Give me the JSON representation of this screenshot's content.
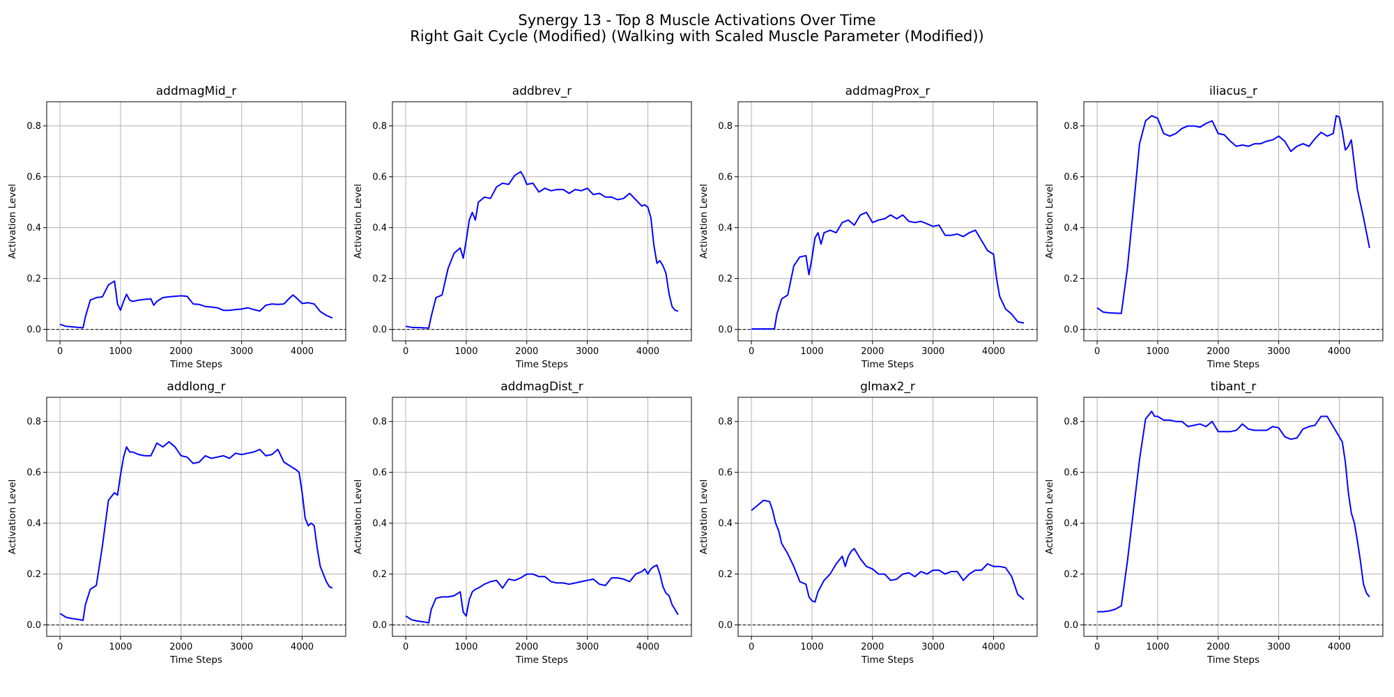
{
  "figure": {
    "title_line1": "Synergy 13 - Top 8 Muscle Activations Over Time",
    "title_line2": "Right Gait Cycle (Modified) (Walking with Scaled Muscle Parameter (Modified))"
  },
  "colors": {
    "line": "#0000ff",
    "grid": "#b0b0b0",
    "zero_line": "#000000"
  },
  "chart_data": [
    {
      "type": "line",
      "title": "addmagMid_r",
      "xlabel": "Time Steps",
      "ylabel": "Activation Level",
      "xlim": [
        -220,
        4720
      ],
      "ylim": [
        -0.045,
        0.895
      ],
      "xticks": [
        0,
        1000,
        2000,
        3000,
        4000
      ],
      "yticks": [
        0.0,
        0.2,
        0.4,
        0.6,
        0.8
      ],
      "grid": true,
      "zero_line": true,
      "x": [
        0,
        100,
        200,
        300,
        380,
        420,
        500,
        600,
        700,
        800,
        900,
        950,
        1000,
        1050,
        1100,
        1150,
        1200,
        1300,
        1400,
        1500,
        1550,
        1600,
        1700,
        1800,
        1900,
        2000,
        2100,
        2200,
        2300,
        2400,
        2500,
        2600,
        2700,
        2800,
        2900,
        3000,
        3100,
        3200,
        3300,
        3400,
        3500,
        3600,
        3700,
        3800,
        3850,
        3900,
        4000,
        4100,
        4200,
        4300,
        4400,
        4500
      ],
      "y": [
        0.02,
        0.012,
        0.01,
        0.008,
        0.006,
        0.05,
        0.115,
        0.125,
        0.128,
        0.175,
        0.19,
        0.1,
        0.075,
        0.11,
        0.138,
        0.115,
        0.11,
        0.115,
        0.118,
        0.12,
        0.095,
        0.11,
        0.125,
        0.128,
        0.13,
        0.132,
        0.13,
        0.1,
        0.098,
        0.09,
        0.088,
        0.085,
        0.075,
        0.075,
        0.078,
        0.08,
        0.085,
        0.078,
        0.072,
        0.095,
        0.1,
        0.098,
        0.1,
        0.125,
        0.135,
        0.125,
        0.102,
        0.105,
        0.1,
        0.07,
        0.055,
        0.045
      ]
    },
    {
      "type": "line",
      "title": "addbrev_r",
      "xlabel": "Time Steps",
      "ylabel": "Activation Level",
      "xlim": [
        -220,
        4720
      ],
      "ylim": [
        -0.045,
        0.895
      ],
      "xticks": [
        0,
        1000,
        2000,
        3000,
        4000
      ],
      "yticks": [
        0.0,
        0.2,
        0.4,
        0.6,
        0.8
      ],
      "grid": true,
      "zero_line": true,
      "x": [
        0,
        100,
        200,
        300,
        380,
        420,
        500,
        600,
        700,
        800,
        900,
        950,
        1000,
        1050,
        1100,
        1150,
        1200,
        1300,
        1400,
        1500,
        1600,
        1700,
        1800,
        1900,
        1950,
        2000,
        2100,
        2200,
        2300,
        2400,
        2500,
        2600,
        2700,
        2800,
        2900,
        3000,
        3100,
        3200,
        3300,
        3400,
        3500,
        3600,
        3700,
        3800,
        3900,
        3950,
        4000,
        4050,
        4100,
        4150,
        4200,
        4250,
        4300,
        4350,
        4400,
        4450,
        4500
      ],
      "y": [
        0.012,
        0.008,
        0.007,
        0.006,
        0.005,
        0.05,
        0.125,
        0.135,
        0.24,
        0.3,
        0.32,
        0.28,
        0.35,
        0.43,
        0.46,
        0.43,
        0.5,
        0.52,
        0.515,
        0.56,
        0.575,
        0.57,
        0.605,
        0.62,
        0.6,
        0.57,
        0.575,
        0.54,
        0.555,
        0.545,
        0.55,
        0.55,
        0.535,
        0.55,
        0.545,
        0.555,
        0.53,
        0.535,
        0.52,
        0.52,
        0.51,
        0.515,
        0.535,
        0.51,
        0.485,
        0.49,
        0.48,
        0.44,
        0.33,
        0.26,
        0.27,
        0.25,
        0.22,
        0.14,
        0.09,
        0.075,
        0.072
      ]
    },
    {
      "type": "line",
      "title": "addmagProx_r",
      "xlabel": "Time Steps",
      "ylabel": "Activation Level",
      "xlim": [
        -220,
        4720
      ],
      "ylim": [
        -0.045,
        0.895
      ],
      "xticks": [
        0,
        1000,
        2000,
        3000,
        4000
      ],
      "yticks": [
        0.0,
        0.2,
        0.4,
        0.6,
        0.8
      ],
      "grid": true,
      "zero_line": true,
      "x": [
        0,
        100,
        200,
        300,
        380,
        420,
        500,
        600,
        700,
        800,
        900,
        950,
        1000,
        1050,
        1100,
        1150,
        1200,
        1300,
        1400,
        1500,
        1600,
        1700,
        1800,
        1900,
        2000,
        2100,
        2200,
        2300,
        2400,
        2500,
        2600,
        2700,
        2800,
        2900,
        3000,
        3100,
        3200,
        3300,
        3400,
        3500,
        3600,
        3700,
        3800,
        3900,
        4000,
        4050,
        4100,
        4200,
        4300,
        4400,
        4500
      ],
      "y": [
        0.002,
        0.002,
        0.002,
        0.002,
        0.002,
        0.06,
        0.12,
        0.135,
        0.25,
        0.285,
        0.29,
        0.215,
        0.28,
        0.36,
        0.38,
        0.335,
        0.38,
        0.39,
        0.38,
        0.42,
        0.43,
        0.41,
        0.45,
        0.46,
        0.42,
        0.43,
        0.435,
        0.45,
        0.435,
        0.45,
        0.425,
        0.42,
        0.425,
        0.415,
        0.405,
        0.41,
        0.37,
        0.37,
        0.375,
        0.365,
        0.38,
        0.39,
        0.35,
        0.31,
        0.295,
        0.2,
        0.13,
        0.08,
        0.06,
        0.03,
        0.025
      ]
    },
    {
      "type": "line",
      "title": "iliacus_r",
      "xlabel": "Time Steps",
      "ylabel": "Activation Level",
      "xlim": [
        -220,
        4720
      ],
      "ylim": [
        -0.045,
        0.895
      ],
      "xticks": [
        0,
        1000,
        2000,
        3000,
        4000
      ],
      "yticks": [
        0.0,
        0.2,
        0.4,
        0.6,
        0.8
      ],
      "grid": true,
      "zero_line": true,
      "x": [
        0,
        100,
        200,
        300,
        400,
        500,
        600,
        700,
        800,
        900,
        950,
        1000,
        1100,
        1200,
        1300,
        1400,
        1500,
        1600,
        1700,
        1800,
        1900,
        2000,
        2100,
        2200,
        2300,
        2400,
        2500,
        2600,
        2700,
        2800,
        2900,
        3000,
        3100,
        3200,
        3300,
        3400,
        3500,
        3600,
        3700,
        3800,
        3900,
        3950,
        4000,
        4050,
        4100,
        4150,
        4200,
        4300,
        4400,
        4500
      ],
      "y": [
        0.085,
        0.068,
        0.065,
        0.064,
        0.063,
        0.24,
        0.48,
        0.73,
        0.82,
        0.84,
        0.835,
        0.83,
        0.77,
        0.76,
        0.77,
        0.79,
        0.8,
        0.8,
        0.795,
        0.81,
        0.82,
        0.77,
        0.765,
        0.74,
        0.72,
        0.725,
        0.72,
        0.73,
        0.73,
        0.74,
        0.745,
        0.76,
        0.74,
        0.7,
        0.72,
        0.73,
        0.72,
        0.75,
        0.775,
        0.76,
        0.77,
        0.84,
        0.835,
        0.78,
        0.705,
        0.72,
        0.745,
        0.55,
        0.44,
        0.32
      ]
    },
    {
      "type": "line",
      "title": "addlong_r",
      "xlabel": "Time Steps",
      "ylabel": "Activation Level",
      "xlim": [
        -220,
        4720
      ],
      "ylim": [
        -0.045,
        0.895
      ],
      "xticks": [
        0,
        1000,
        2000,
        3000,
        4000
      ],
      "yticks": [
        0.0,
        0.2,
        0.4,
        0.6,
        0.8
      ],
      "grid": true,
      "zero_line": true,
      "x": [
        0,
        100,
        200,
        300,
        380,
        420,
        500,
        600,
        700,
        800,
        900,
        950,
        1000,
        1050,
        1100,
        1150,
        1200,
        1300,
        1400,
        1500,
        1600,
        1700,
        1800,
        1900,
        2000,
        2100,
        2200,
        2300,
        2400,
        2500,
        2600,
        2700,
        2800,
        2900,
        3000,
        3100,
        3200,
        3300,
        3400,
        3500,
        3600,
        3700,
        3800,
        3900,
        3950,
        4000,
        4050,
        4100,
        4150,
        4200,
        4250,
        4300,
        4350,
        4400,
        4450,
        4500
      ],
      "y": [
        0.045,
        0.03,
        0.025,
        0.022,
        0.018,
        0.08,
        0.14,
        0.155,
        0.31,
        0.49,
        0.52,
        0.51,
        0.59,
        0.66,
        0.7,
        0.68,
        0.68,
        0.67,
        0.665,
        0.665,
        0.715,
        0.7,
        0.72,
        0.7,
        0.665,
        0.66,
        0.635,
        0.64,
        0.665,
        0.655,
        0.66,
        0.665,
        0.655,
        0.675,
        0.67,
        0.675,
        0.68,
        0.69,
        0.665,
        0.67,
        0.69,
        0.64,
        0.625,
        0.61,
        0.6,
        0.52,
        0.42,
        0.39,
        0.4,
        0.39,
        0.3,
        0.23,
        0.2,
        0.17,
        0.15,
        0.145
      ]
    },
    {
      "type": "line",
      "title": "addmagDist_r",
      "xlabel": "Time Steps",
      "ylabel": "Activation Level",
      "xlim": [
        -220,
        4720
      ],
      "ylim": [
        -0.045,
        0.895
      ],
      "xticks": [
        0,
        1000,
        2000,
        3000,
        4000
      ],
      "yticks": [
        0.0,
        0.2,
        0.4,
        0.6,
        0.8
      ],
      "grid": true,
      "zero_line": true,
      "x": [
        0,
        100,
        200,
        300,
        380,
        420,
        500,
        600,
        700,
        800,
        900,
        950,
        1000,
        1050,
        1100,
        1150,
        1200,
        1300,
        1400,
        1500,
        1600,
        1700,
        1800,
        1900,
        2000,
        2100,
        2200,
        2300,
        2400,
        2500,
        2600,
        2700,
        2800,
        2900,
        3000,
        3100,
        3200,
        3300,
        3400,
        3500,
        3600,
        3700,
        3800,
        3900,
        3950,
        4000,
        4050,
        4100,
        4150,
        4200,
        4250,
        4300,
        4350,
        4400,
        4450,
        4500
      ],
      "y": [
        0.035,
        0.02,
        0.015,
        0.012,
        0.008,
        0.06,
        0.105,
        0.11,
        0.11,
        0.115,
        0.13,
        0.05,
        0.035,
        0.1,
        0.13,
        0.14,
        0.145,
        0.16,
        0.17,
        0.175,
        0.145,
        0.18,
        0.175,
        0.185,
        0.2,
        0.2,
        0.19,
        0.19,
        0.17,
        0.165,
        0.165,
        0.16,
        0.165,
        0.17,
        0.175,
        0.18,
        0.16,
        0.155,
        0.185,
        0.185,
        0.18,
        0.17,
        0.2,
        0.21,
        0.22,
        0.2,
        0.22,
        0.23,
        0.235,
        0.2,
        0.15,
        0.125,
        0.115,
        0.08,
        0.06,
        0.04
      ]
    },
    {
      "type": "line",
      "title": "glmax2_r",
      "xlabel": "Time Steps",
      "ylabel": "Activation Level",
      "xlim": [
        -220,
        4720
      ],
      "ylim": [
        -0.045,
        0.895
      ],
      "xticks": [
        0,
        1000,
        2000,
        3000,
        4000
      ],
      "yticks": [
        0.0,
        0.2,
        0.4,
        0.6,
        0.8
      ],
      "grid": true,
      "zero_line": true,
      "x": [
        0,
        100,
        200,
        300,
        350,
        400,
        450,
        500,
        600,
        700,
        800,
        900,
        950,
        1000,
        1050,
        1100,
        1200,
        1300,
        1400,
        1500,
        1550,
        1600,
        1650,
        1700,
        1800,
        1900,
        2000,
        2100,
        2200,
        2300,
        2400,
        2500,
        2600,
        2700,
        2800,
        2900,
        3000,
        3100,
        3200,
        3300,
        3400,
        3500,
        3600,
        3700,
        3800,
        3900,
        4000,
        4100,
        4200,
        4300,
        4400,
        4500
      ],
      "y": [
        0.45,
        0.47,
        0.49,
        0.485,
        0.45,
        0.4,
        0.37,
        0.32,
        0.28,
        0.23,
        0.17,
        0.16,
        0.11,
        0.095,
        0.09,
        0.13,
        0.175,
        0.2,
        0.24,
        0.27,
        0.23,
        0.27,
        0.29,
        0.3,
        0.26,
        0.23,
        0.22,
        0.2,
        0.2,
        0.175,
        0.18,
        0.2,
        0.205,
        0.19,
        0.21,
        0.2,
        0.215,
        0.215,
        0.2,
        0.21,
        0.21,
        0.175,
        0.2,
        0.215,
        0.215,
        0.24,
        0.23,
        0.23,
        0.225,
        0.19,
        0.12,
        0.1
      ]
    },
    {
      "type": "line",
      "title": "tibant_r",
      "xlabel": "Time Steps",
      "ylabel": "Activation Level",
      "xlim": [
        -220,
        4720
      ],
      "ylim": [
        -0.045,
        0.895
      ],
      "xticks": [
        0,
        1000,
        2000,
        3000,
        4000
      ],
      "yticks": [
        0.0,
        0.2,
        0.4,
        0.6,
        0.8
      ],
      "grid": true,
      "zero_line": true,
      "x": [
        0,
        100,
        200,
        300,
        400,
        500,
        600,
        700,
        800,
        900,
        950,
        1000,
        1100,
        1200,
        1300,
        1400,
        1500,
        1600,
        1700,
        1800,
        1900,
        2000,
        2100,
        2200,
        2300,
        2400,
        2500,
        2600,
        2700,
        2800,
        2900,
        3000,
        3100,
        3200,
        3300,
        3400,
        3500,
        3600,
        3700,
        3800,
        3900,
        3950,
        4000,
        4050,
        4100,
        4150,
        4200,
        4250,
        4300,
        4350,
        4400,
        4450,
        4500
      ],
      "y": [
        0.052,
        0.052,
        0.055,
        0.062,
        0.075,
        0.25,
        0.45,
        0.65,
        0.81,
        0.84,
        0.82,
        0.82,
        0.805,
        0.805,
        0.8,
        0.8,
        0.78,
        0.785,
        0.79,
        0.78,
        0.8,
        0.76,
        0.76,
        0.76,
        0.765,
        0.79,
        0.77,
        0.765,
        0.765,
        0.765,
        0.78,
        0.775,
        0.74,
        0.73,
        0.735,
        0.77,
        0.78,
        0.785,
        0.82,
        0.82,
        0.78,
        0.76,
        0.74,
        0.72,
        0.64,
        0.52,
        0.44,
        0.4,
        0.33,
        0.25,
        0.16,
        0.125,
        0.11
      ]
    }
  ]
}
